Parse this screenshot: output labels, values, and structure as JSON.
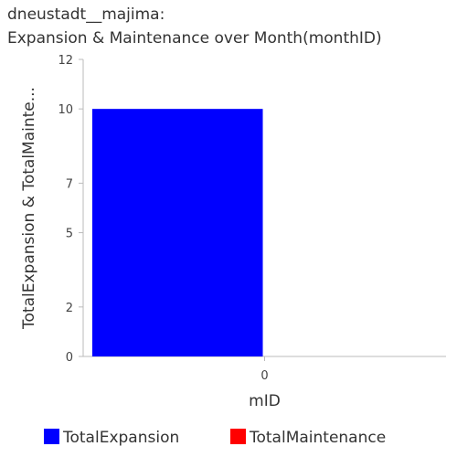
{
  "title": {
    "line1": "dneustadt__majima:",
    "line2": "Expansion & Maintenance over Month(monthID)"
  },
  "chart_data": {
    "type": "bar",
    "title": "dneustadt__majima: Expansion & Maintenance over Month(monthID)",
    "xlabel": "mID",
    "ylabel": "TotalExpansion & TotalMainte...",
    "categories": [
      "0"
    ],
    "series": [
      {
        "name": "TotalExpansion",
        "values": [
          10
        ],
        "color": "#0000ff"
      },
      {
        "name": "TotalMaintenance",
        "values": [
          0
        ],
        "color": "#ff0000"
      }
    ],
    "ylim": [
      0,
      12
    ],
    "yticks": [
      0,
      2,
      5,
      7,
      10,
      12
    ],
    "grid": false,
    "legend_position": "bottom"
  }
}
